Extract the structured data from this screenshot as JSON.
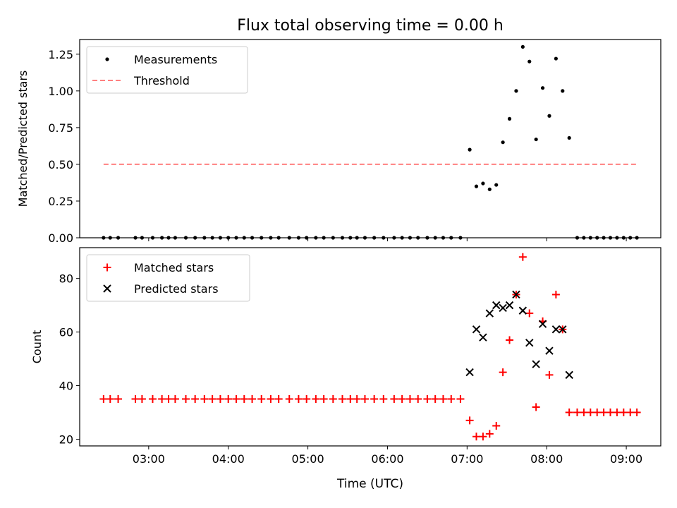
{
  "figure": {
    "title": "Flux total observing time = 0.00 h",
    "xlabel": "Time (UTC)",
    "xticks": [
      "03:00",
      "04:00",
      "05:00",
      "06:00",
      "07:00",
      "08:00",
      "09:00"
    ]
  },
  "chart_data": [
    {
      "type": "scatter",
      "ylabel": "Matched/Predicted stars",
      "xlim": [
        "02:08",
        "09:26"
      ],
      "ylim": [
        0,
        1.35
      ],
      "yticks": [
        "0.00",
        "0.25",
        "0.50",
        "0.75",
        "1.00",
        "1.25"
      ],
      "legend_position": "top-left",
      "series": [
        {
          "name": "Measurements",
          "marker": "dot",
          "color": "#000000",
          "points": [
            [
              "02:26",
              0
            ],
            [
              "02:31",
              0
            ],
            [
              "02:37",
              0
            ],
            [
              "02:50",
              0
            ],
            [
              "02:55",
              0
            ],
            [
              "03:03",
              0
            ],
            [
              "03:10",
              0
            ],
            [
              "03:15",
              0
            ],
            [
              "03:20",
              0
            ],
            [
              "03:28",
              0
            ],
            [
              "03:35",
              0
            ],
            [
              "03:42",
              0
            ],
            [
              "03:48",
              0
            ],
            [
              "03:54",
              0
            ],
            [
              "04:00",
              0
            ],
            [
              "04:06",
              0
            ],
            [
              "04:12",
              0
            ],
            [
              "04:18",
              0
            ],
            [
              "04:25",
              0
            ],
            [
              "04:32",
              0
            ],
            [
              "04:38",
              0
            ],
            [
              "04:46",
              0
            ],
            [
              "04:53",
              0
            ],
            [
              "04:59",
              0
            ],
            [
              "05:06",
              0
            ],
            [
              "05:12",
              0
            ],
            [
              "05:19",
              0
            ],
            [
              "05:26",
              0
            ],
            [
              "05:32",
              0
            ],
            [
              "05:37",
              0
            ],
            [
              "05:43",
              0
            ],
            [
              "05:50",
              0
            ],
            [
              "05:57",
              0
            ],
            [
              "06:05",
              0
            ],
            [
              "06:11",
              0
            ],
            [
              "06:17",
              0
            ],
            [
              "06:23",
              0
            ],
            [
              "06:30",
              0
            ],
            [
              "06:36",
              0
            ],
            [
              "06:42",
              0
            ],
            [
              "06:48",
              0
            ],
            [
              "06:55",
              0
            ],
            [
              "07:02",
              0.6
            ],
            [
              "07:07",
              0.35
            ],
            [
              "07:12",
              0.37
            ],
            [
              "07:17",
              0.33
            ],
            [
              "07:22",
              0.36
            ],
            [
              "07:27",
              0.65
            ],
            [
              "07:32",
              0.81
            ],
            [
              "07:37",
              1.0
            ],
            [
              "07:42",
              1.3
            ],
            [
              "07:47",
              1.2
            ],
            [
              "07:52",
              0.67
            ],
            [
              "07:57",
              1.02
            ],
            [
              "08:02",
              0.83
            ],
            [
              "08:07",
              1.22
            ],
            [
              "08:12",
              1.0
            ],
            [
              "08:17",
              0.68
            ],
            [
              "08:23",
              0
            ],
            [
              "08:28",
              0
            ],
            [
              "08:33",
              0
            ],
            [
              "08:38",
              0
            ],
            [
              "08:43",
              0
            ],
            [
              "08:48",
              0
            ],
            [
              "08:53",
              0
            ],
            [
              "08:58",
              0
            ],
            [
              "09:03",
              0
            ],
            [
              "09:08",
              0
            ]
          ]
        },
        {
          "name": "Threshold",
          "style": "dashed",
          "color": "#ff8080",
          "points": [
            [
              "02:26",
              0.5
            ],
            [
              "09:08",
              0.5
            ]
          ]
        }
      ]
    },
    {
      "type": "scatter",
      "ylabel": "Count",
      "xlim": [
        "02:08",
        "09:26"
      ],
      "ylim": [
        17.5,
        91.5
      ],
      "yticks": [
        "20",
        "40",
        "60",
        "80"
      ],
      "legend_position": "top-left",
      "series": [
        {
          "name": "Matched stars",
          "marker": "plus",
          "color": "#ff0000",
          "points": [
            [
              "02:26",
              35
            ],
            [
              "02:31",
              35
            ],
            [
              "02:37",
              35
            ],
            [
              "02:50",
              35
            ],
            [
              "02:55",
              35
            ],
            [
              "03:03",
              35
            ],
            [
              "03:10",
              35
            ],
            [
              "03:15",
              35
            ],
            [
              "03:20",
              35
            ],
            [
              "03:28",
              35
            ],
            [
              "03:35",
              35
            ],
            [
              "03:42",
              35
            ],
            [
              "03:48",
              35
            ],
            [
              "03:54",
              35
            ],
            [
              "04:00",
              35
            ],
            [
              "04:06",
              35
            ],
            [
              "04:12",
              35
            ],
            [
              "04:18",
              35
            ],
            [
              "04:25",
              35
            ],
            [
              "04:32",
              35
            ],
            [
              "04:38",
              35
            ],
            [
              "04:46",
              35
            ],
            [
              "04:53",
              35
            ],
            [
              "04:59",
              35
            ],
            [
              "05:06",
              35
            ],
            [
              "05:12",
              35
            ],
            [
              "05:19",
              35
            ],
            [
              "05:26",
              35
            ],
            [
              "05:32",
              35
            ],
            [
              "05:37",
              35
            ],
            [
              "05:43",
              35
            ],
            [
              "05:50",
              35
            ],
            [
              "05:57",
              35
            ],
            [
              "06:05",
              35
            ],
            [
              "06:11",
              35
            ],
            [
              "06:17",
              35
            ],
            [
              "06:23",
              35
            ],
            [
              "06:30",
              35
            ],
            [
              "06:36",
              35
            ],
            [
              "06:42",
              35
            ],
            [
              "06:48",
              35
            ],
            [
              "06:55",
              35
            ],
            [
              "07:02",
              27
            ],
            [
              "07:07",
              21
            ],
            [
              "07:12",
              21
            ],
            [
              "07:17",
              22
            ],
            [
              "07:22",
              25
            ],
            [
              "07:27",
              45
            ],
            [
              "07:32",
              57
            ],
            [
              "07:37",
              74
            ],
            [
              "07:42",
              88
            ],
            [
              "07:47",
              67
            ],
            [
              "07:52",
              32
            ],
            [
              "07:57",
              64
            ],
            [
              "08:02",
              44
            ],
            [
              "08:07",
              74
            ],
            [
              "08:12",
              61
            ],
            [
              "08:17",
              30
            ],
            [
              "08:23",
              30
            ],
            [
              "08:28",
              30
            ],
            [
              "08:33",
              30
            ],
            [
              "08:38",
              30
            ],
            [
              "08:43",
              30
            ],
            [
              "08:48",
              30
            ],
            [
              "08:53",
              30
            ],
            [
              "08:58",
              30
            ],
            [
              "09:03",
              30
            ],
            [
              "09:08",
              30
            ]
          ]
        },
        {
          "name": "Predicted stars",
          "marker": "x",
          "color": "#000000",
          "points": [
            [
              "07:02",
              45
            ],
            [
              "07:07",
              61
            ],
            [
              "07:12",
              58
            ],
            [
              "07:17",
              67
            ],
            [
              "07:22",
              70
            ],
            [
              "07:27",
              69
            ],
            [
              "07:32",
              70
            ],
            [
              "07:37",
              74
            ],
            [
              "07:42",
              68
            ],
            [
              "07:47",
              56
            ],
            [
              "07:52",
              48
            ],
            [
              "07:57",
              63
            ],
            [
              "08:02",
              53
            ],
            [
              "08:07",
              61
            ],
            [
              "08:12",
              61
            ],
            [
              "08:17",
              44
            ]
          ]
        }
      ]
    }
  ]
}
